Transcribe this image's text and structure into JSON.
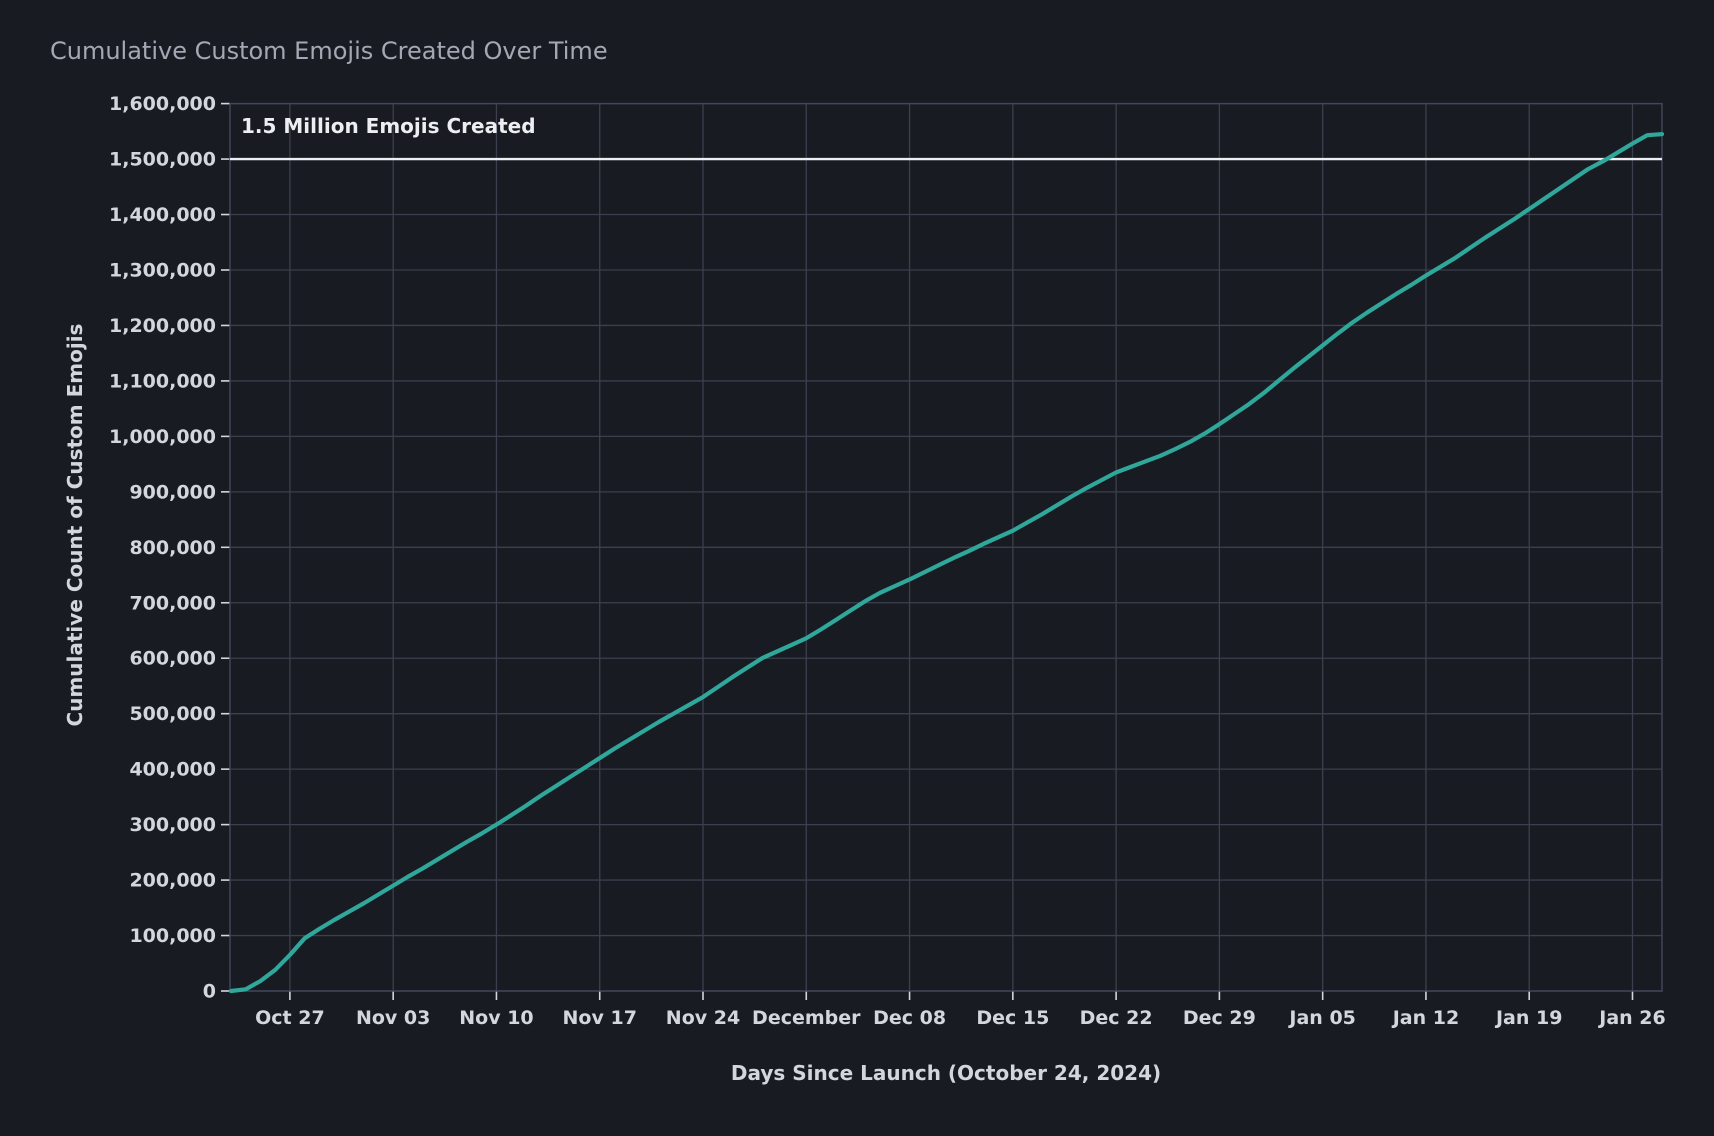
{
  "title": "Cumulative Custom Emojis Created Over Time",
  "chart_data": {
    "type": "line",
    "title": "Cumulative Custom Emojis Created Over Time",
    "xlabel": "Days Since Launch (October 24, 2024)",
    "ylabel": "Cumulative Count of Custom Emojis",
    "ylim": [
      0,
      1600000
    ],
    "y_tick_step": 100000,
    "x_domain_days": [
      -1.06,
      96
    ],
    "grid": true,
    "legend_position": "none",
    "x_ticks": [
      {
        "day": 3,
        "label": "Oct 27"
      },
      {
        "day": 10,
        "label": "Nov 03"
      },
      {
        "day": 17,
        "label": "Nov 10"
      },
      {
        "day": 24,
        "label": "Nov 17"
      },
      {
        "day": 31,
        "label": "Nov 24"
      },
      {
        "day": 38,
        "label": "December"
      },
      {
        "day": 45,
        "label": "Dec 08"
      },
      {
        "day": 52,
        "label": "Dec 15"
      },
      {
        "day": 59,
        "label": "Dec 22"
      },
      {
        "day": 66,
        "label": "Dec 29"
      },
      {
        "day": 73,
        "label": "Jan 05"
      },
      {
        "day": 80,
        "label": "Jan 12"
      },
      {
        "day": 87,
        "label": "Jan 19"
      },
      {
        "day": 94,
        "label": "Jan 26"
      }
    ],
    "annotation": {
      "label": "1.5 Million Emojis Created",
      "value": 1500000
    },
    "series": [
      {
        "name": "cumulative-custom-emojis",
        "color": "#2fa79b",
        "start_day": -1,
        "day_step": 1,
        "values": [
          0,
          3000,
          18000,
          38000,
          65000,
          95000,
          112000,
          128000,
          143000,
          158000,
          174000,
          190000,
          206000,
          221000,
          237000,
          253000,
          269000,
          284000,
          300000,
          317000,
          334000,
          352000,
          369000,
          386000,
          403000,
          420000,
          437000,
          453000,
          469000,
          485000,
          500000,
          515000,
          530000,
          548000,
          566000,
          583000,
          600000,
          612000,
          624000,
          636000,
          652000,
          669000,
          686000,
          703000,
          718000,
          730000,
          742000,
          755000,
          768000,
          781000,
          793000,
          806000,
          818000,
          830000,
          845000,
          860000,
          876000,
          892000,
          907000,
          921000,
          935000,
          945000,
          955000,
          965000,
          977000,
          990000,
          1005000,
          1022000,
          1040000,
          1058000,
          1078000,
          1100000,
          1122000,
          1143000,
          1164000,
          1185000,
          1205000,
          1223000,
          1240000,
          1257000,
          1273000,
          1290000,
          1306000,
          1322000,
          1340000,
          1358000,
          1375000,
          1392000,
          1410000,
          1428000,
          1446000,
          1464000,
          1482000,
          1496000,
          1512000,
          1528000,
          1543000,
          1545000
        ]
      }
    ],
    "colors": {
      "background": "#191b22",
      "grid": "#3c3f4d",
      "frame": "#44475a",
      "tick_text": "#d4d6de",
      "title_text": "#a4a8b4",
      "line": "#2fa79b",
      "annotation_line": "#eceef2"
    }
  }
}
